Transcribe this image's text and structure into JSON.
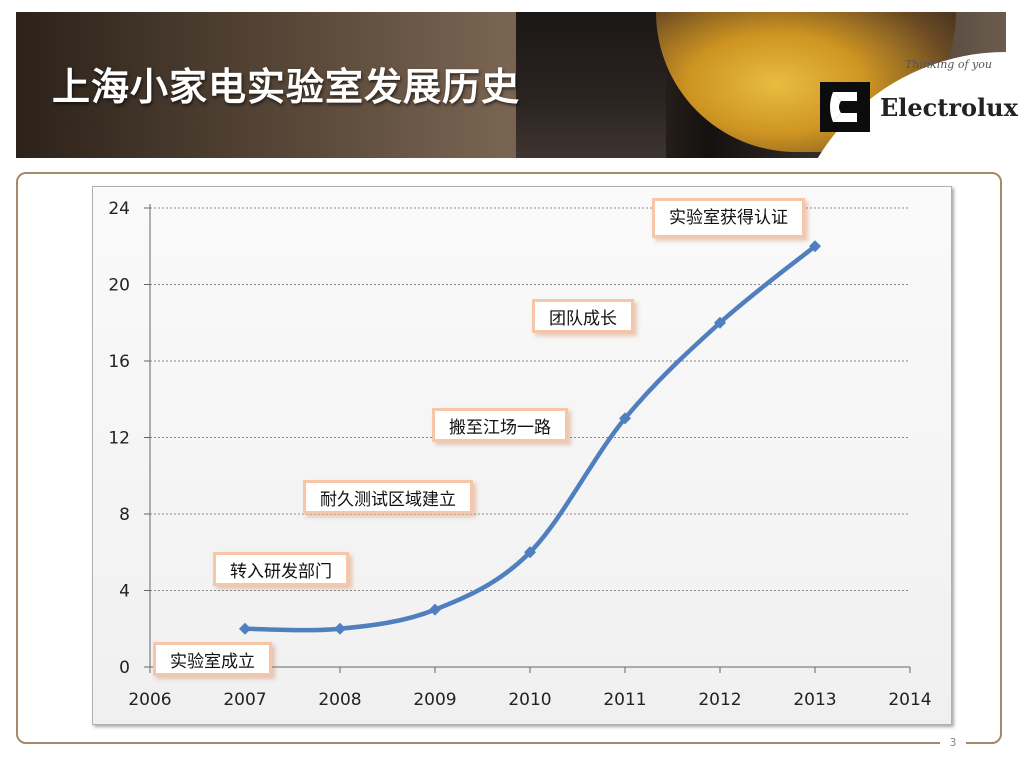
{
  "slide": {
    "title": "上海小家电实验室发展历史",
    "page_number": "3"
  },
  "logo": {
    "brand": "Electrolux",
    "tagline": "Thinking of you"
  },
  "chart_data": {
    "type": "line",
    "x": [
      2007,
      2008,
      2009,
      2010,
      2011,
      2012,
      2013
    ],
    "y": [
      2,
      2,
      3,
      6,
      13,
      18,
      22
    ],
    "xlim": [
      2006,
      2014
    ],
    "ylim": [
      0,
      24
    ],
    "xticks": [
      "2006",
      "2007",
      "2008",
      "2009",
      "2010",
      "2011",
      "2012",
      "2013",
      "2014"
    ],
    "yticks": [
      "0",
      "4",
      "8",
      "12",
      "16",
      "20",
      "24"
    ],
    "grid": true,
    "line_color": "#4f7fbf",
    "annotations": [
      {
        "text": "实验室成立"
      },
      {
        "text": "转入研发部门"
      },
      {
        "text": "耐久测试区域建立"
      },
      {
        "text": "搬至江场一路"
      },
      {
        "text": "团队成长"
      },
      {
        "text": "实验室获得认证"
      }
    ]
  }
}
